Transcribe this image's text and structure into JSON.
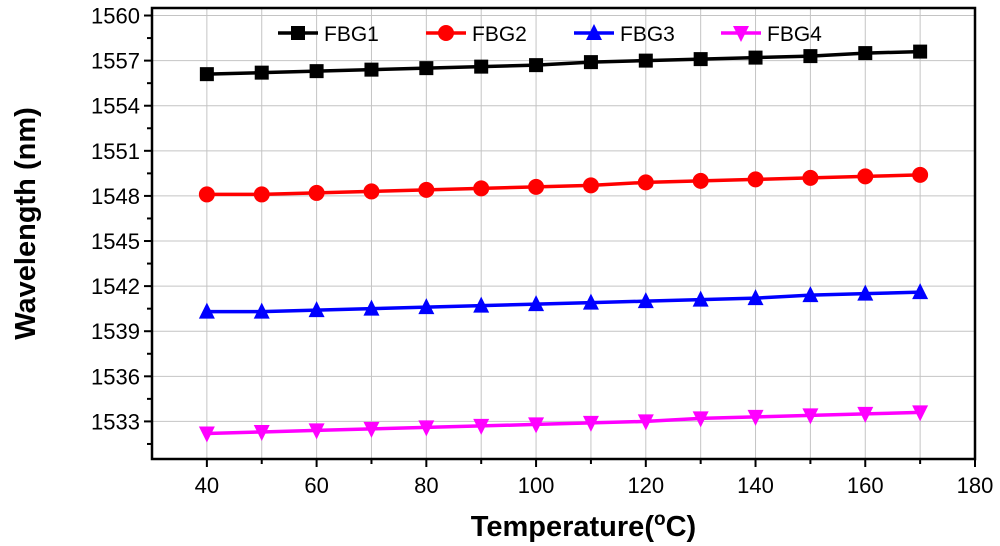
{
  "chart_data": {
    "type": "line",
    "xlabel": "Temperature(",
    "xlabel_unit_sup": "o",
    "xlabel_unit": "C)",
    "ylabel": "Wavelength (nm)",
    "xlim": [
      30,
      180
    ],
    "ylim": [
      1530.5,
      1560.5
    ],
    "x_ticks": [
      40,
      60,
      80,
      100,
      120,
      140,
      160,
      180
    ],
    "y_ticks": [
      1533,
      1536,
      1539,
      1542,
      1545,
      1548,
      1551,
      1554,
      1557,
      1560
    ],
    "grid": true,
    "legend_position": "top",
    "x": [
      40,
      50,
      60,
      70,
      80,
      90,
      100,
      110,
      120,
      130,
      140,
      150,
      160,
      170
    ],
    "series": [
      {
        "name": "FBG1",
        "color": "#000000",
        "marker": "square",
        "values": [
          1556.1,
          1556.2,
          1556.3,
          1556.4,
          1556.5,
          1556.6,
          1556.7,
          1556.9,
          1557.0,
          1557.1,
          1557.2,
          1557.3,
          1557.5,
          1557.6
        ]
      },
      {
        "name": "FBG2",
        "color": "#ff0000",
        "marker": "circle",
        "values": [
          1548.1,
          1548.1,
          1548.2,
          1548.3,
          1548.4,
          1548.5,
          1548.6,
          1548.7,
          1548.9,
          1549.0,
          1549.1,
          1549.2,
          1549.3,
          1549.4
        ]
      },
      {
        "name": "FBG3",
        "color": "#0000ff",
        "marker": "triangle-up",
        "values": [
          1540.3,
          1540.3,
          1540.4,
          1540.5,
          1540.6,
          1540.7,
          1540.8,
          1540.9,
          1541.0,
          1541.1,
          1541.2,
          1541.4,
          1541.5,
          1541.6
        ]
      },
      {
        "name": "FBG4",
        "color": "#ff00ff",
        "marker": "triangle-down",
        "values": [
          1532.2,
          1532.3,
          1532.4,
          1532.5,
          1532.6,
          1532.7,
          1532.8,
          1532.9,
          1533.0,
          1533.2,
          1533.3,
          1533.4,
          1533.5,
          1533.6
        ]
      }
    ]
  }
}
